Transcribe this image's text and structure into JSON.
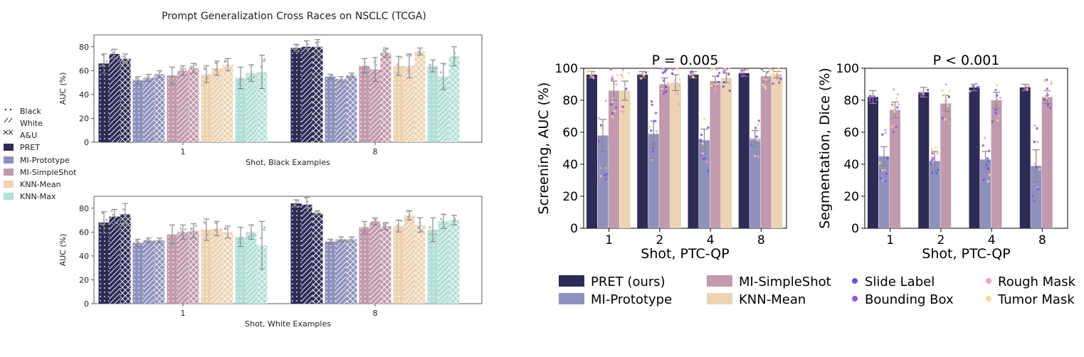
{
  "colors": {
    "PRET": "#2e2b56",
    "MI-Prototype": "#8f91bd",
    "MI-SimpleShot": "#c19aae",
    "KNN-Mean": "#ecd3b2",
    "KNN-Max": "#b2dfd6",
    "Slide Label": "#5b5be0",
    "Bounding Box": "#9a4fe0",
    "Rough Mask": "#f2a0c8",
    "Tumor Mask": "#f7d889"
  },
  "left_title": "Prompt Generalization Cross Races on NSCLC (TCGA)",
  "left_legend": {
    "patterns": [
      "Black",
      "White",
      "A&U"
    ],
    "methods": [
      "PRET",
      "MI-Prototype",
      "MI-SimpleShot",
      "KNN-Mean",
      "KNN-Max"
    ]
  },
  "right_legend": {
    "methods": [
      "PRET (ours)",
      "MI-Prototype",
      "MI-SimpleShot",
      "KNN-Mean"
    ],
    "label_types": [
      "Slide Label",
      "Bounding Box",
      "Rough Mask",
      "Tumor Mask"
    ]
  },
  "chart_data": [
    {
      "id": "black",
      "type": "bar",
      "title": "Prompt Generalization Cross Races on NSCLC (TCGA)",
      "xlabel": "Shot, Black Examples",
      "ylabel": "AUC (%)",
      "ylim": [
        0,
        90
      ],
      "yticks": [
        0,
        20,
        40,
        60,
        80
      ],
      "categories": [
        "1",
        "8"
      ],
      "patterns": [
        "Black",
        "White",
        "A&U"
      ],
      "series": [
        {
          "name": "PRET",
          "values": [
            [
              66,
              74,
              70
            ],
            [
              79,
              80,
              80
            ]
          ],
          "errors": [
            [
              8,
              4,
              4
            ],
            [
              3,
              5,
              6
            ]
          ]
        },
        {
          "name": "MI-Prototype",
          "values": [
            [
              52,
              54,
              57
            ],
            [
              55,
              53,
              56
            ]
          ],
          "errors": [
            [
              3,
              3,
              3
            ],
            [
              2,
              2,
              2
            ]
          ]
        },
        {
          "name": "MI-SimpleShot",
          "values": [
            [
              56,
              60,
              62
            ],
            [
              64,
              61,
              75
            ]
          ],
          "errors": [
            [
              7,
              4,
              4
            ],
            [
              6,
              10,
              4
            ]
          ]
        },
        {
          "name": "KNN-Mean",
          "values": [
            [
              57,
              62,
              65
            ],
            [
              64,
              64,
              76
            ]
          ],
          "errors": [
            [
              7,
              6,
              5
            ],
            [
              8,
              10,
              3
            ]
          ]
        },
        {
          "name": "KNN-Max",
          "values": [
            [
              54,
              58,
              59
            ],
            [
              64,
              55,
              72
            ]
          ],
          "errors": [
            [
              9,
              7,
              14
            ],
            [
              5,
              11,
              8
            ]
          ]
        }
      ]
    },
    {
      "id": "white",
      "type": "bar",
      "xlabel": "Shot, White Examples",
      "ylabel": "AUC (%)",
      "ylim": [
        0,
        90
      ],
      "yticks": [
        0,
        20,
        40,
        60,
        80
      ],
      "categories": [
        "1",
        "8"
      ],
      "patterns": [
        "Black",
        "White",
        "A&U"
      ],
      "series": [
        {
          "name": "PRET",
          "values": [
            [
              68,
              73,
              75
            ],
            [
              84,
              83,
              76
            ]
          ],
          "errors": [
            [
              9,
              6,
              9
            ],
            [
              3,
              6,
              2
            ]
          ]
        },
        {
          "name": "MI-Prototype",
          "values": [
            [
              51,
              53,
              53
            ],
            [
              52,
              54,
              54
            ]
          ],
          "errors": [
            [
              3,
              2,
              2
            ],
            [
              2,
              2,
              2
            ]
          ]
        },
        {
          "name": "MI-SimpleShot",
          "values": [
            [
              58,
              60,
              61
            ],
            [
              64,
              69,
              65
            ]
          ],
          "errors": [
            [
              8,
              6,
              6
            ],
            [
              5,
              3,
              3
            ]
          ]
        },
        {
          "name": "KNN-Mean",
          "values": [
            [
              62,
              63,
              60
            ],
            [
              65,
              74,
              66
            ]
          ],
          "errors": [
            [
              9,
              6,
              5
            ],
            [
              5,
              4,
              6
            ]
          ]
        },
        {
          "name": "KNN-Max",
          "values": [
            [
              56,
              60,
              49
            ],
            [
              62,
              69,
              70
            ]
          ],
          "errors": [
            [
              8,
              6,
              20
            ],
            [
              10,
              6,
              4
            ]
          ]
        }
      ]
    },
    {
      "id": "screening",
      "type": "bar",
      "title": "P = 0.005",
      "xlabel": "Shot, PTC-QP",
      "ylabel": "Screening, AUC (%)",
      "ylim": [
        0,
        100
      ],
      "yticks": [
        0,
        20,
        40,
        60,
        80,
        100
      ],
      "categories": [
        "1",
        "2",
        "4",
        "8"
      ],
      "series": [
        {
          "name": "PRET (ours)",
          "values": [
            96,
            96,
            96,
            97
          ],
          "errors": [
            2,
            2,
            2,
            2
          ]
        },
        {
          "name": "MI-Prototype",
          "values": [
            58,
            59,
            55,
            56
          ],
          "errors": [
            10,
            8,
            7,
            5
          ]
        },
        {
          "name": "MI-SimpleShot",
          "values": [
            86,
            90,
            92,
            95
          ],
          "errors": [
            6,
            4,
            3,
            3
          ]
        },
        {
          "name": "KNN-Mean",
          "values": [
            86,
            91,
            94,
            96
          ],
          "errors": [
            6,
            5,
            3,
            2
          ]
        }
      ]
    },
    {
      "id": "segmentation",
      "type": "bar",
      "title": "P < 0.001",
      "xlabel": "Shot, PTC-QP",
      "ylabel": "Segmentation, Dice (%)",
      "ylim": [
        0,
        100
      ],
      "yticks": [
        0,
        20,
        40,
        60,
        80,
        100
      ],
      "categories": [
        "1",
        "2",
        "4",
        "8"
      ],
      "series": [
        {
          "name": "PRET (ours)",
          "values": [
            82,
            85,
            88,
            88
          ],
          "errors": [
            4,
            3,
            2,
            2
          ]
        },
        {
          "name": "MI-Prototype",
          "values": [
            45,
            42,
            43,
            39
          ],
          "errors": [
            6,
            6,
            5,
            10
          ]
        },
        {
          "name": "MI-SimpleShot",
          "values": [
            74,
            78,
            80,
            82
          ],
          "errors": [
            5,
            5,
            5,
            4
          ]
        }
      ]
    }
  ]
}
